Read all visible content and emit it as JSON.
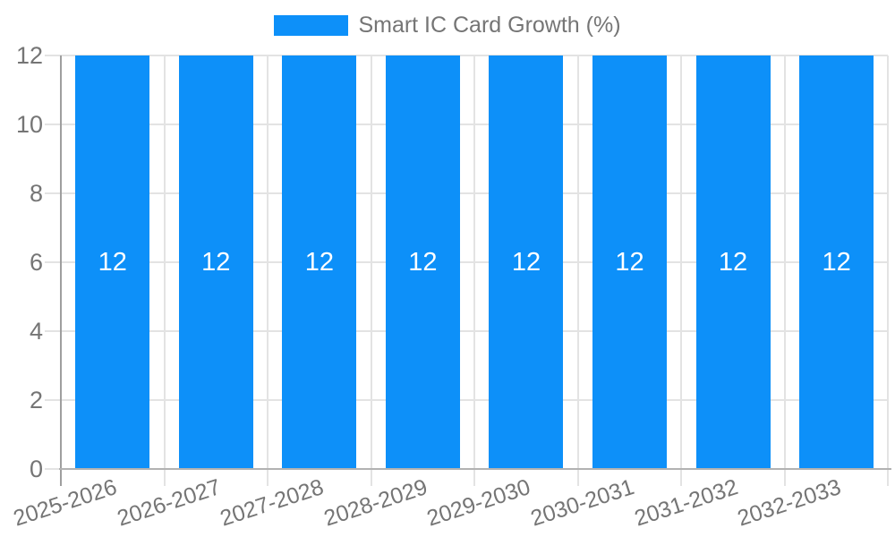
{
  "chart_data": {
    "type": "bar",
    "title": "Smart IC Card Growth (%)",
    "legend": {
      "position": "top",
      "entries": [
        "Smart IC Card Growth (%)"
      ]
    },
    "categories": [
      "2025-2026",
      "2026-2027",
      "2027-2028",
      "2028-2029",
      "2029-2030",
      "2030-2031",
      "2031-2032",
      "2032-2033"
    ],
    "series": [
      {
        "name": "Smart IC Card Growth (%)",
        "values": [
          12,
          12,
          12,
          12,
          12,
          12,
          12,
          12
        ],
        "color": "#0D90F9"
      }
    ],
    "value_labels_shown": true,
    "xlabel": "",
    "ylabel": "",
    "ylim": [
      0,
      12
    ],
    "yticks": [
      0,
      2,
      4,
      6,
      8,
      10,
      12
    ],
    "grid": true,
    "x_label_rotation_deg": -18
  },
  "colors": {
    "bar": "#0D90F9",
    "grid_line": "#E3E3E3",
    "axis_line": "#9E9E9E",
    "baseline": "#B2B2B2",
    "text": "#757575",
    "value_label_text": "#FFFFFF",
    "background": "#FFFFFF"
  }
}
